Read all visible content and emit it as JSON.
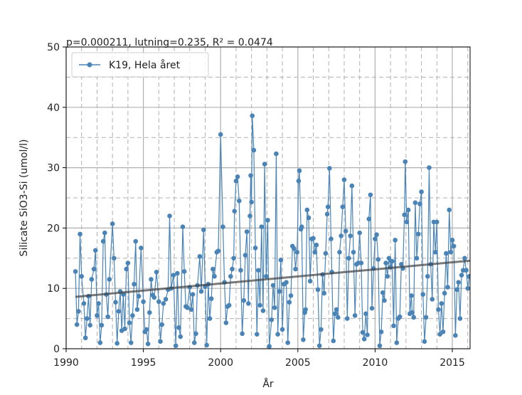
{
  "chart_data": {
    "type": "line",
    "annotation": "p=0.000211, lutning=0.235, R² = 0.0474",
    "xlabel": "År",
    "ylabel": "Silicate SiO3-Si (umol/l)",
    "xlim": [
      1990,
      2016.15
    ],
    "xticks": [
      1990,
      1995,
      2000,
      2005,
      2010,
      2015
    ],
    "ylim": [
      0,
      50
    ],
    "yticks": [
      0,
      10,
      20,
      30,
      40,
      50
    ],
    "grid": true,
    "minor_grid": true,
    "legend_loc": "upper left",
    "x": [
      1990.6,
      1990.7,
      1990.8,
      1990.9,
      1991.0,
      1991.15,
      1991.25,
      1991.35,
      1991.45,
      1991.55,
      1991.65,
      1991.8,
      1991.9,
      1992.0,
      1992.1,
      1992.2,
      1992.3,
      1992.4,
      1992.5,
      1992.6,
      1992.7,
      1992.8,
      1993.0,
      1993.1,
      1993.2,
      1993.3,
      1993.4,
      1993.5,
      1993.6,
      1993.7,
      1993.8,
      1993.9,
      1994.0,
      1994.1,
      1994.2,
      1994.3,
      1994.4,
      1994.5,
      1994.6,
      1994.7,
      1994.85,
      1995.0,
      1995.1,
      1995.2,
      1995.3,
      1995.4,
      1995.5,
      1995.6,
      1995.7,
      1995.85,
      1996.0,
      1996.1,
      1996.2,
      1996.3,
      1996.45,
      1996.6,
      1996.7,
      1996.8,
      1996.95,
      1997.1,
      1997.2,
      1997.3,
      1997.4,
      1997.55,
      1997.65,
      1997.75,
      1997.85,
      1998.0,
      1998.1,
      1998.2,
      1998.3,
      1998.4,
      1998.5,
      1998.65,
      1998.75,
      1998.9,
      1999.0,
      1999.1,
      1999.2,
      1999.3,
      1999.4,
      1999.5,
      1999.6,
      1999.75,
      1999.85,
      2000.0,
      2000.15,
      2000.25,
      2000.35,
      2000.45,
      2000.55,
      2000.65,
      2000.75,
      2000.85,
      2000.9,
      2001.0,
      2001.1,
      2001.2,
      2001.3,
      2001.4,
      2001.5,
      2001.6,
      2001.7,
      2001.8,
      2001.9,
      2001.95,
      2002.0,
      2002.05,
      2002.15,
      2002.25,
      2002.35,
      2002.45,
      2002.55,
      2002.65,
      2002.75,
      2002.85,
      2002.95,
      2003.05,
      2003.15,
      2003.3,
      2003.4,
      2003.5,
      2003.6,
      2003.7,
      2003.8,
      2003.9,
      2004.0,
      2004.1,
      2004.25,
      2004.35,
      2004.45,
      2004.55,
      2004.65,
      2004.75,
      2004.85,
      2004.95,
      2005.05,
      2005.1,
      2005.2,
      2005.25,
      2005.35,
      2005.45,
      2005.5,
      2005.6,
      2005.7,
      2005.8,
      2005.9,
      2006.0,
      2006.1,
      2006.2,
      2006.3,
      2006.4,
      2006.5,
      2006.6,
      2006.7,
      2006.8,
      2006.9,
      2006.95,
      2007.05,
      2007.15,
      2007.2,
      2007.3,
      2007.4,
      2007.5,
      2007.6,
      2007.7,
      2007.8,
      2007.9,
      2008.0,
      2008.1,
      2008.2,
      2008.3,
      2008.4,
      2008.5,
      2008.6,
      2008.7,
      2008.8,
      2008.9,
      2009.0,
      2009.1,
      2009.2,
      2009.3,
      2009.4,
      2009.5,
      2009.6,
      2009.7,
      2009.8,
      2009.9,
      2010.0,
      2010.1,
      2010.2,
      2010.3,
      2010.4,
      2010.5,
      2010.6,
      2010.7,
      2010.8,
      2010.9,
      2011.0,
      2011.1,
      2011.2,
      2011.3,
      2011.4,
      2011.5,
      2011.6,
      2011.7,
      2011.8,
      2011.9,
      2011.95,
      2012.05,
      2012.15,
      2012.25,
      2012.35,
      2012.4,
      2012.5,
      2012.6,
      2012.7,
      2012.8,
      2012.9,
      2013.0,
      2013.1,
      2013.2,
      2013.3,
      2013.4,
      2013.5,
      2013.6,
      2013.7,
      2013.8,
      2013.9,
      2014.0,
      2014.1,
      2014.2,
      2014.3,
      2014.4,
      2014.5,
      2014.6,
      2014.7,
      2014.8,
      2014.9,
      2015.0,
      2015.1,
      2015.2,
      2015.3,
      2015.4,
      2015.5,
      2015.6,
      2015.7,
      2015.8,
      2015.9,
      2016.0,
      2016.1
    ],
    "series": [
      {
        "name": "K19, Hela året",
        "color": "#4a84b6",
        "values": [
          12.8,
          4,
          6.2,
          19,
          12,
          7.5,
          1.8,
          5,
          8.7,
          3.9,
          11.5,
          13.2,
          16.3,
          5.5,
          7.5,
          1,
          3.9,
          17.8,
          19.2,
          9,
          5.3,
          11.5,
          20.7,
          15,
          7.7,
          0.9,
          6.2,
          9.5,
          3,
          9,
          3.3,
          13.2,
          14.2,
          4.3,
          1,
          5.5,
          10.7,
          17.8,
          6.5,
          8.7,
          16.7,
          7.8,
          2.8,
          3.2,
          0.8,
          6,
          11.5,
          8.9,
          8.5,
          12.7,
          7.8,
          1.2,
          4,
          7.5,
          8.2,
          9.8,
          22,
          10,
          12.2,
          0.5,
          12.5,
          3.5,
          2,
          20.2,
          12.8,
          7,
          6.8,
          10.2,
          6.5,
          9,
          1,
          2.5,
          10.5,
          15.3,
          9.5,
          19.7,
          10.3,
          0.6,
          10.7,
          5,
          8.3,
          13.2,
          12,
          16,
          16.2,
          35.5,
          20.2,
          11,
          4.3,
          7,
          7.2,
          12,
          13.2,
          15,
          22.8,
          27.8,
          28.5,
          24.5,
          13,
          2.5,
          8,
          15.5,
          19.4,
          7.5,
          22,
          28.7,
          24.3,
          38.6,
          32.9,
          16.7,
          2.4,
          13,
          7.2,
          20.2,
          6.3,
          30.6,
          12,
          21.3,
          0.4,
          4.8,
          10.5,
          6.8,
          32.3,
          2.4,
          9.5,
          14.7,
          3.2,
          10.7,
          11,
          1,
          7.7,
          8.8,
          17,
          16.6,
          13.2,
          16,
          27.8,
          29.5,
          19.8,
          20.2,
          1.5,
          6,
          6.5,
          23,
          21.7,
          11.2,
          18.2,
          18.3,
          16,
          17.2,
          9.8,
          0.5,
          3.2,
          12.3,
          9.2,
          15.8,
          22.3,
          23.5,
          29.9,
          18.2,
          12.7,
          1.3,
          5.8,
          6.5,
          5.2,
          16,
          18.7,
          23.5,
          28,
          19.5,
          5,
          15,
          18.7,
          27,
          16,
          5.5,
          14,
          14.2,
          19.2,
          14.2,
          2.7,
          1.6,
          5.8,
          2.3,
          21.5,
          25.5,
          6.7,
          13.3,
          18.2,
          18.9,
          14.8,
          0.5,
          2.8,
          9.3,
          8,
          14.2,
          12,
          15,
          13.5,
          14.5,
          3.8,
          18,
          1,
          5,
          5.3,
          14,
          13.3,
          22.2,
          31,
          21,
          23,
          5.8,
          8.8,
          6,
          5.2,
          24.2,
          15,
          19,
          24,
          26,
          9,
          1.2,
          5.2,
          12,
          30,
          14,
          8.2,
          21,
          16,
          21,
          6.5,
          2.4,
          7.5,
          2.8,
          9.2,
          15.8,
          10.2,
          23,
          16,
          18,
          17,
          2.2,
          9.8,
          11,
          5,
          12.2,
          13,
          15,
          13,
          10,
          12
        ]
      }
    ],
    "trend": {
      "x": [
        1990.6,
        2016.15
      ],
      "values": [
        8.6,
        14.6
      ],
      "color": "#404040"
    }
  }
}
